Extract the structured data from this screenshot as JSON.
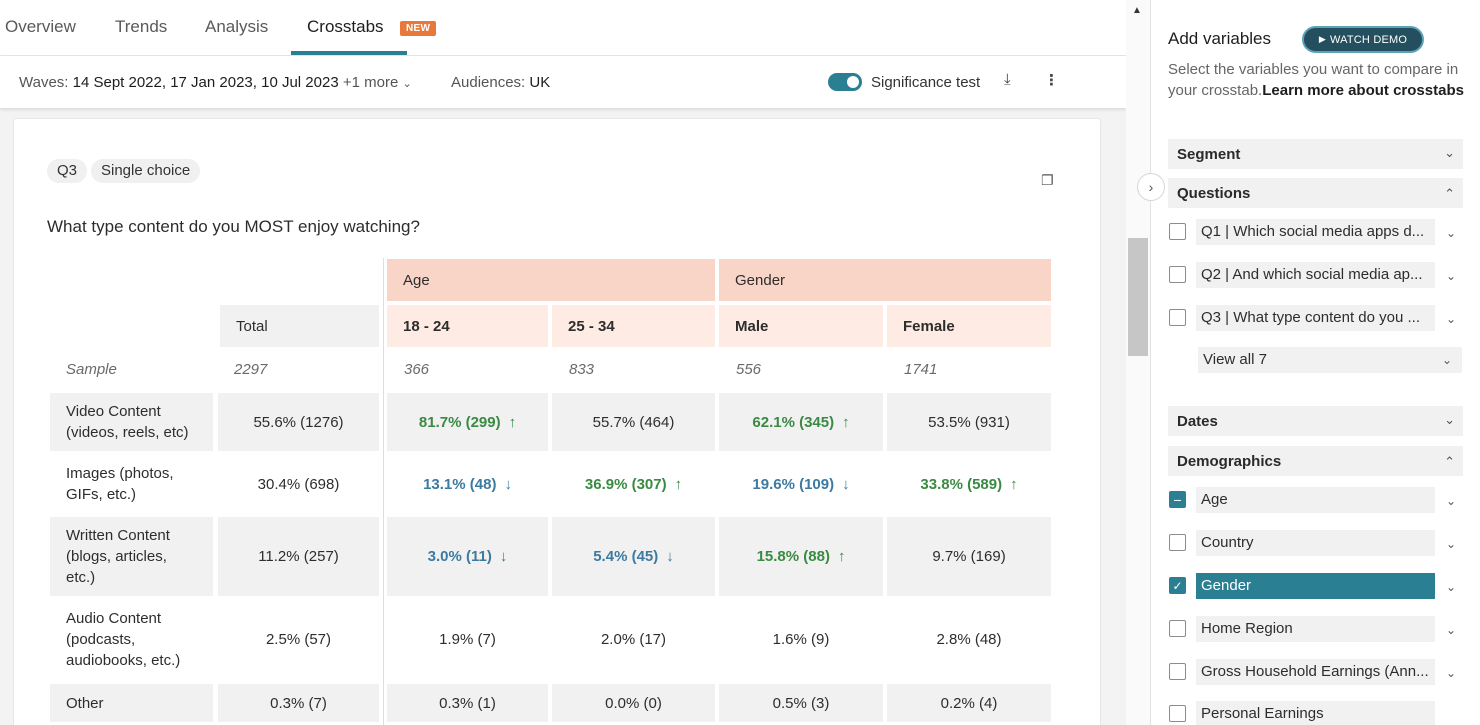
{
  "tabs": [
    {
      "label": "Overview"
    },
    {
      "label": "Trends"
    },
    {
      "label": "Analysis"
    },
    {
      "label": "Crosstabs",
      "badge": "NEW"
    }
  ],
  "filters": {
    "waves_label": "Waves:",
    "waves_value": "14 Sept 2022, 17 Jan 2023, 10 Jul 2023",
    "waves_more": "+1 more",
    "audiences_label": "Audiences:",
    "audiences_value": "UK",
    "significance_label": "Significance test"
  },
  "question": {
    "code": "Q3",
    "type": "Single choice",
    "text": "What type content do you MOST enjoy watching?"
  },
  "table": {
    "groups": [
      "Age",
      "Gender"
    ],
    "columns": [
      "Total",
      "18 - 24",
      "25 - 34",
      "Male",
      "Female"
    ],
    "sample_label": "Sample",
    "sample": [
      "2297",
      "366",
      "833",
      "556",
      "1741"
    ],
    "rows": [
      {
        "label": "Video Content (videos, reels, etc)",
        "cells": [
          {
            "v": "55.6% (1276)",
            "sig": "none"
          },
          {
            "v": "81.7% (299)",
            "sig": "up"
          },
          {
            "v": "55.7% (464)",
            "sig": "none"
          },
          {
            "v": "62.1% (345)",
            "sig": "up"
          },
          {
            "v": "53.5% (931)",
            "sig": "none"
          }
        ]
      },
      {
        "label": "Images (photos, GIFs, etc.)",
        "cells": [
          {
            "v": "30.4% (698)",
            "sig": "none"
          },
          {
            "v": "13.1% (48)",
            "sig": "down"
          },
          {
            "v": "36.9% (307)",
            "sig": "up"
          },
          {
            "v": "19.6% (109)",
            "sig": "down"
          },
          {
            "v": "33.8% (589)",
            "sig": "up"
          }
        ]
      },
      {
        "label": "Written Content (blogs, articles, etc.)",
        "cells": [
          {
            "v": "11.2% (257)",
            "sig": "none"
          },
          {
            "v": "3.0% (11)",
            "sig": "down"
          },
          {
            "v": "5.4% (45)",
            "sig": "down"
          },
          {
            "v": "15.8% (88)",
            "sig": "up"
          },
          {
            "v": "9.7% (169)",
            "sig": "none"
          }
        ]
      },
      {
        "label": "Audio Content (podcasts, audiobooks, etc.)",
        "cells": [
          {
            "v": "2.5% (57)",
            "sig": "none"
          },
          {
            "v": "1.9% (7)",
            "sig": "none"
          },
          {
            "v": "2.0% (17)",
            "sig": "none"
          },
          {
            "v": "1.6% (9)",
            "sig": "none"
          },
          {
            "v": "2.8% (48)",
            "sig": "none"
          }
        ]
      },
      {
        "label": "Other",
        "cells": [
          {
            "v": "0.3% (7)",
            "sig": "none"
          },
          {
            "v": "0.3% (1)",
            "sig": "none"
          },
          {
            "v": "0.0% (0)",
            "sig": "none"
          },
          {
            "v": "0.5% (3)",
            "sig": "none"
          },
          {
            "v": "0.2% (4)",
            "sig": "none"
          }
        ]
      }
    ]
  },
  "panel": {
    "title": "Add variables",
    "watch_demo": "WATCH DEMO",
    "desc_plain": "Select the variables you want to compare in your crosstab.",
    "desc_link": "Learn more about crosstabs",
    "sections": {
      "segment": "Segment",
      "questions": "Questions",
      "dates": "Dates",
      "demographics": "Demographics"
    },
    "questions": [
      {
        "label": "Q1 | Which social media apps d...",
        "checked": false
      },
      {
        "label": "Q2 | And which social media ap...",
        "checked": false
      },
      {
        "label": "Q3 | What type content do you ...",
        "checked": false
      }
    ],
    "view_all": "View all 7",
    "demographics": [
      {
        "label": "Age",
        "state": "partial"
      },
      {
        "label": "Country",
        "state": "unchecked"
      },
      {
        "label": "Gender",
        "state": "checked"
      },
      {
        "label": "Home Region",
        "state": "unchecked"
      },
      {
        "label": "Gross Household Earnings (Ann...",
        "state": "unchecked"
      },
      {
        "label": "Personal Earnings",
        "state": "unchecked"
      }
    ]
  },
  "colors": {
    "accent": "#2a7f92",
    "badge": "#e8793a",
    "sig_up": "#3a8a43",
    "sig_down": "#3d7aa0",
    "header_peach": "#f9d5c7"
  }
}
